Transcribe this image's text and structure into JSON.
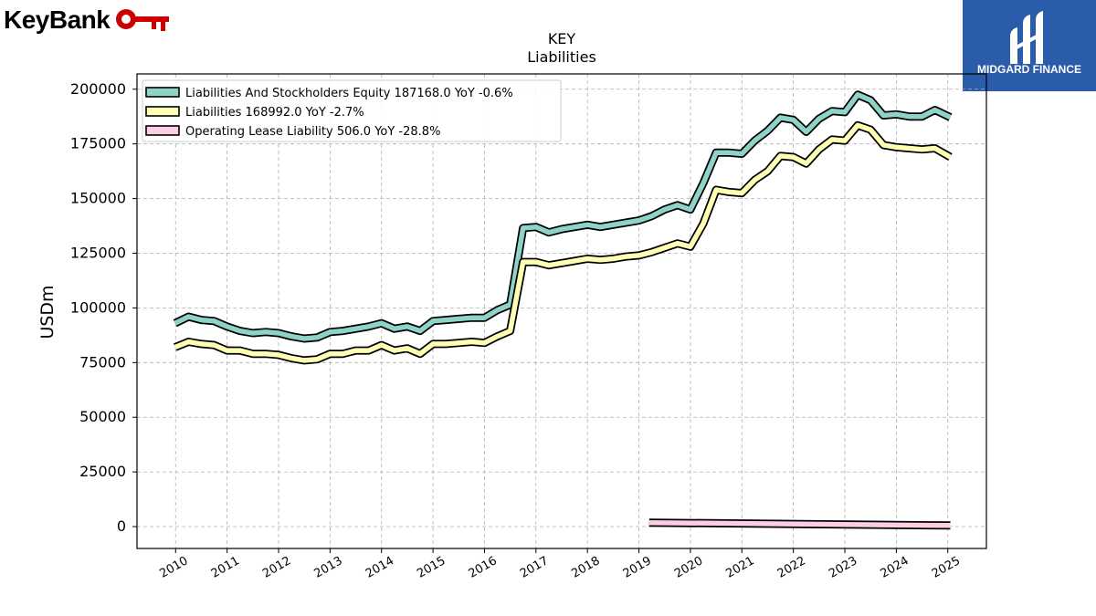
{
  "brand": {
    "name": "KeyBank",
    "icon": "key-icon",
    "color": "#cc0000"
  },
  "corner_logo": {
    "text": "MIDGARD FINANCE",
    "background": "#2a5caa",
    "icon": "midgard-logo-icon"
  },
  "chart_data": {
    "type": "line",
    "title": "KEY",
    "subtitle": "Liabilities",
    "ylabel": "USDm",
    "xlabel": "",
    "ylim": [
      -10000,
      207000
    ],
    "xlim": [
      2009.25,
      2025.75
    ],
    "yticks": [
      0,
      25000,
      50000,
      75000,
      100000,
      125000,
      150000,
      175000,
      200000
    ],
    "xticks": [
      2010,
      2011,
      2012,
      2013,
      2014,
      2015,
      2016,
      2017,
      2018,
      2019,
      2020,
      2021,
      2022,
      2023,
      2024,
      2025
    ],
    "grid": true,
    "legend_position": "top-left",
    "series": [
      {
        "name": "Liabilities And Stockholders Equity",
        "legend_label": "Liabilities And Stockholders Equity  187168.0 YoY -0.6%",
        "color": "#8dd3c7",
        "x": [
          2009.99,
          2010.25,
          2010.5,
          2010.75,
          2011.0,
          2011.25,
          2011.5,
          2011.75,
          2012.0,
          2012.25,
          2012.5,
          2012.75,
          2013.0,
          2013.25,
          2013.5,
          2013.75,
          2014.0,
          2014.25,
          2014.5,
          2014.75,
          2015.0,
          2015.25,
          2015.5,
          2015.75,
          2016.0,
          2016.25,
          2016.5,
          2016.75,
          2017.0,
          2017.25,
          2017.5,
          2017.75,
          2018.0,
          2018.25,
          2018.5,
          2018.75,
          2019.0,
          2019.25,
          2019.5,
          2019.75,
          2020.0,
          2020.25,
          2020.5,
          2020.75,
          2021.0,
          2021.25,
          2021.5,
          2021.75,
          2022.0,
          2022.25,
          2022.5,
          2022.75,
          2023.0,
          2023.25,
          2023.5,
          2023.75,
          2024.0,
          2024.25,
          2024.5,
          2024.75,
          2025.05
        ],
        "values": [
          93000,
          96000,
          94500,
          94000,
          91500,
          89500,
          88500,
          89000,
          88500,
          87000,
          86000,
          86500,
          89000,
          89500,
          90500,
          91500,
          93000,
          90500,
          91500,
          89500,
          94000,
          94500,
          95000,
          95500,
          95500,
          99000,
          101500,
          136500,
          137000,
          134500,
          136000,
          137000,
          138000,
          137000,
          138000,
          139000,
          140000,
          142000,
          145000,
          147000,
          145000,
          157000,
          171000,
          171000,
          170500,
          176500,
          181000,
          187000,
          186000,
          180500,
          186500,
          190000,
          189500,
          197500,
          195000,
          188000,
          188500,
          187500,
          187500,
          190500,
          187168
        ]
      },
      {
        "name": "Liabilities",
        "legend_label": "Liabilities  168992.0 YoY -2.7%",
        "color": "#ffffb3",
        "x": [
          2009.99,
          2010.25,
          2010.5,
          2010.75,
          2011.0,
          2011.25,
          2011.5,
          2011.75,
          2012.0,
          2012.25,
          2012.5,
          2012.75,
          2013.0,
          2013.25,
          2013.5,
          2013.75,
          2014.0,
          2014.25,
          2014.5,
          2014.75,
          2015.0,
          2015.25,
          2015.5,
          2015.75,
          2016.0,
          2016.25,
          2016.5,
          2016.75,
          2017.0,
          2017.25,
          2017.5,
          2017.75,
          2018.0,
          2018.25,
          2018.5,
          2018.75,
          2019.0,
          2019.25,
          2019.5,
          2019.75,
          2020.0,
          2020.25,
          2020.5,
          2020.75,
          2021.0,
          2021.25,
          2021.5,
          2021.75,
          2022.0,
          2022.25,
          2022.5,
          2022.75,
          2023.0,
          2023.25,
          2023.5,
          2023.75,
          2024.0,
          2024.25,
          2024.5,
          2024.75,
          2025.05
        ],
        "values": [
          82000,
          84500,
          83500,
          83000,
          80500,
          80500,
          79000,
          79000,
          78500,
          77000,
          76000,
          76500,
          79000,
          79000,
          80500,
          80500,
          83000,
          80500,
          81500,
          79000,
          83500,
          83500,
          84000,
          84500,
          84000,
          87000,
          89500,
          121000,
          121000,
          119500,
          120500,
          121500,
          122500,
          122000,
          122500,
          123500,
          124000,
          125500,
          127500,
          129500,
          128000,
          138500,
          154000,
          153000,
          152500,
          158500,
          162500,
          169500,
          169000,
          166000,
          172500,
          177000,
          176500,
          183500,
          181500,
          174500,
          173500,
          173000,
          172500,
          173000,
          168992
        ]
      },
      {
        "name": "Operating Lease Liability",
        "legend_label": "Operating Lease Liability  506.0 YoY -28.8%",
        "color": "#fccde5",
        "x": [
          2019.2,
          2025.05
        ],
        "values": [
          1800,
          506
        ]
      }
    ]
  }
}
